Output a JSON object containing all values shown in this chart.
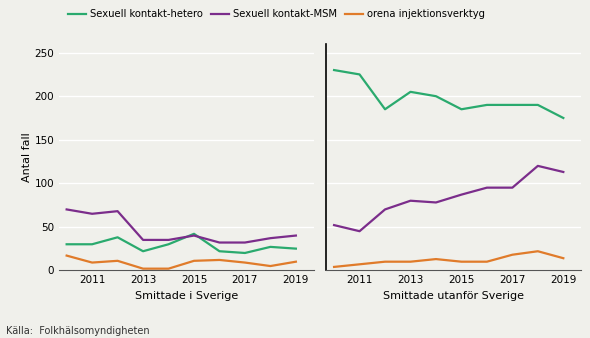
{
  "years": [
    2010,
    2011,
    2012,
    2013,
    2014,
    2015,
    2016,
    2017,
    2018,
    2019
  ],
  "sverige": {
    "hetero": [
      30,
      30,
      38,
      22,
      30,
      42,
      22,
      20,
      27,
      25
    ],
    "msm": [
      70,
      65,
      68,
      35,
      35,
      40,
      32,
      32,
      37,
      40
    ],
    "inject": [
      17,
      9,
      11,
      2,
      2,
      11,
      12,
      9,
      5,
      10
    ]
  },
  "utanfor": {
    "hetero": [
      230,
      225,
      185,
      205,
      200,
      185,
      190,
      190,
      190,
      175
    ],
    "msm": [
      52,
      45,
      70,
      80,
      78,
      87,
      95,
      95,
      120,
      113
    ],
    "inject": [
      4,
      7,
      10,
      10,
      13,
      10,
      10,
      18,
      22,
      14
    ]
  },
  "colors": {
    "hetero": "#2aaa6e",
    "msm": "#7b2d8b",
    "inject": "#e07b2a"
  },
  "legend_labels": [
    "Sexuell kontakt-hetero",
    "Sexuell kontakt-MSM",
    "orena injektionsverktyg"
  ],
  "ylabel": "Antal fall",
  "xlabel_left": "Smittade i Sverige",
  "xlabel_right": "Smittade utanför Sverige",
  "ylim": [
    0,
    260
  ],
  "yticks": [
    0,
    50,
    100,
    150,
    200,
    250
  ],
  "source_text": "Källa:  Folkhälsomyndigheten",
  "bg_color": "#f0f0eb",
  "line_width": 1.6
}
